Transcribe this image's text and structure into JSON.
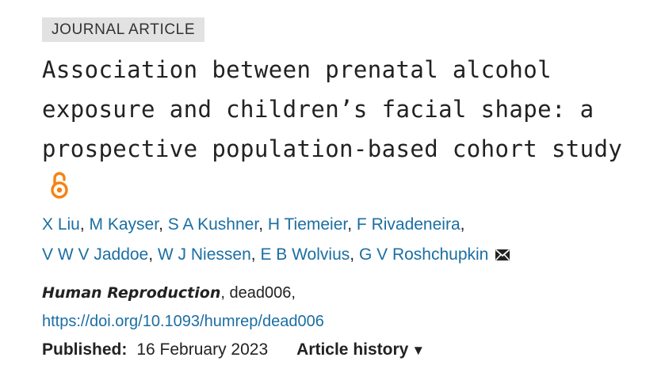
{
  "article_type": "JOURNAL ARTICLE",
  "title": "Association between prenatal alcohol exposure and children’s facial shape: a prospective population-based cohort study",
  "open_access_icon": "open-access-lock-icon",
  "authors": [
    {
      "name": "X Liu",
      "sep": ", "
    },
    {
      "name": "M Kayser",
      "sep": ", "
    },
    {
      "name": "S A Kushner",
      "sep": ", "
    },
    {
      "name": "H Tiemeier",
      "sep": ", "
    },
    {
      "name": "F Rivadeneira",
      "sep": ", "
    },
    {
      "name": "V W V Jaddoe",
      "sep": ", "
    },
    {
      "name": "W J Niessen",
      "sep": ", "
    },
    {
      "name": "E B Wolvius",
      "sep": ", "
    },
    {
      "name": "G V Roshchupkin",
      "sep": ""
    }
  ],
  "corresponding_icon": "envelope-icon",
  "journal": {
    "name": "Human Reproduction",
    "article_id": ", dead006,"
  },
  "doi": "https://doi.org/10.1093/humrep/dead006",
  "published": {
    "label": "Published:",
    "date": "16 February 2023"
  },
  "history": {
    "label": "Article history",
    "caret": "▼"
  },
  "colors": {
    "link": "#1b6ea3",
    "open_access": "#f68212",
    "badge_bg": "#e2e2e2"
  }
}
